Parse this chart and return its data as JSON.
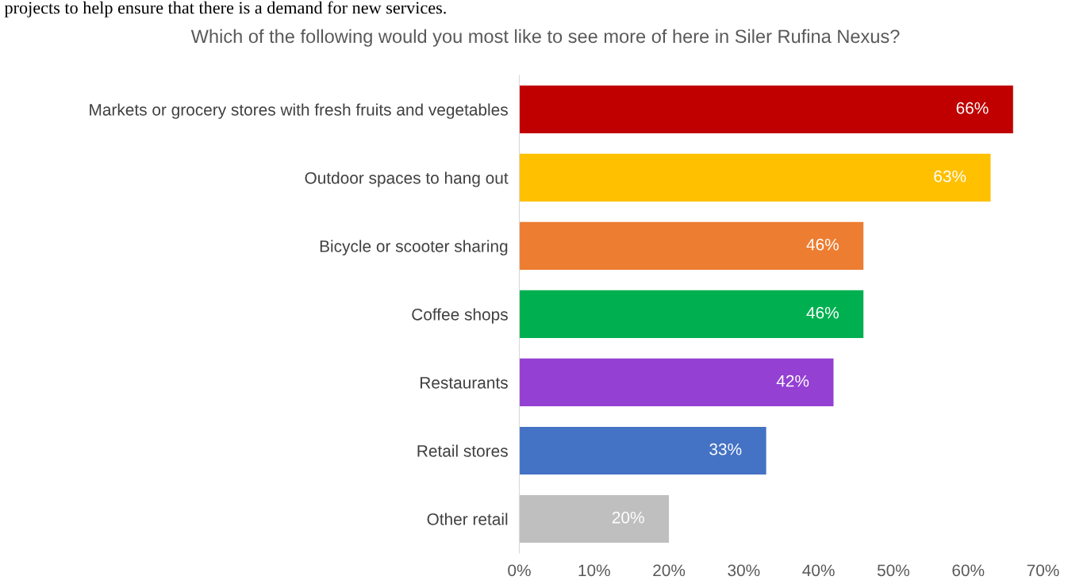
{
  "chart_data": {
    "type": "bar",
    "orientation": "horizontal",
    "title": "Which of the following would you most like to see more of here in Siler Rufina Nexus?",
    "annotations": [
      "projects to help ensure that there is a demand for new services."
    ],
    "categories": [
      "Markets or grocery stores with fresh fruits and vegetables",
      "Outdoor spaces to hang out",
      "Bicycle or scooter sharing",
      "Coffee shops",
      "Restaurants",
      "Retail stores",
      "Other retail"
    ],
    "values": [
      66,
      63,
      46,
      46,
      42,
      33,
      20
    ],
    "value_labels": [
      "66%",
      "63%",
      "46%",
      "46%",
      "42%",
      "33%",
      "20%"
    ],
    "colors": [
      "#c00000",
      "#ffc000",
      "#ed7d31",
      "#00b050",
      "#9440d3",
      "#4472c4",
      "#bfbfbf"
    ],
    "xlim": [
      0,
      70
    ],
    "xticks": [
      {
        "value": 0,
        "label": "0%"
      },
      {
        "value": 10,
        "label": "10%"
      },
      {
        "value": 20,
        "label": "20%"
      },
      {
        "value": 30,
        "label": "30%"
      },
      {
        "value": 40,
        "label": "40%"
      },
      {
        "value": 50,
        "label": "50%"
      },
      {
        "value": 60,
        "label": "60%"
      },
      {
        "value": 70,
        "label": "70%"
      }
    ],
    "grid": false,
    "legend": false
  }
}
